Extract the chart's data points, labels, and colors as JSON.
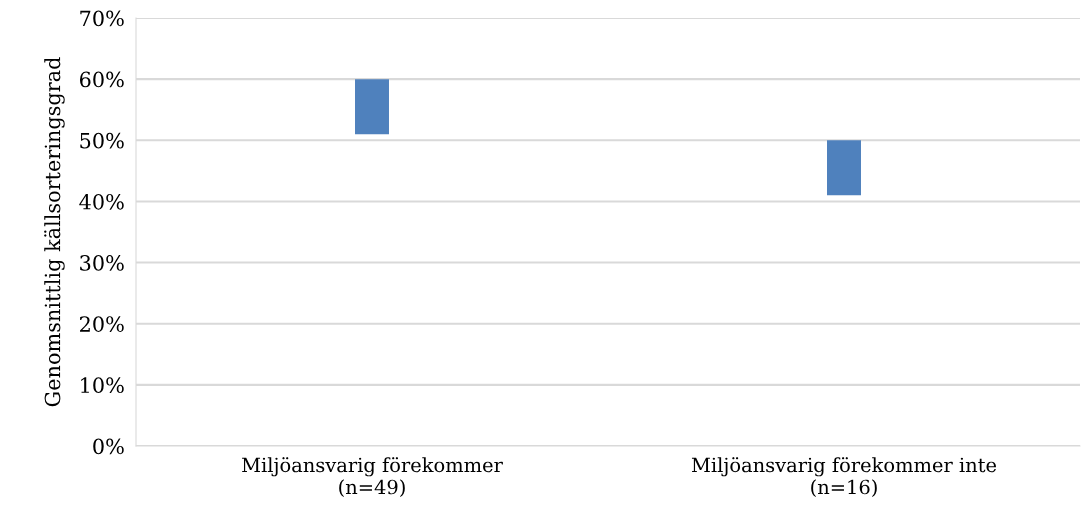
{
  "chart_data": {
    "type": "bar",
    "ylabel": "Genomsnittlig källsorteringsgrad",
    "categories": [
      "Miljöansvarig förekommer\n(n=49)",
      "Miljöansvarig förekommer inte\n(n=16)"
    ],
    "values": [
      9,
      9
    ],
    "base": [
      51,
      41
    ],
    "color": "#4f81bd",
    "ylim": [
      0,
      70
    ],
    "yticks": [
      {
        "value": 0,
        "label": "0%"
      },
      {
        "value": 10,
        "label": "10%"
      },
      {
        "value": 20,
        "label": "20%"
      },
      {
        "value": 30,
        "label": "30%"
      },
      {
        "value": 40,
        "label": "40%"
      },
      {
        "value": 50,
        "label": "50%"
      },
      {
        "value": 60,
        "label": "60%"
      },
      {
        "value": 70,
        "label": "70%"
      }
    ],
    "grid": "y",
    "legend": false
  }
}
